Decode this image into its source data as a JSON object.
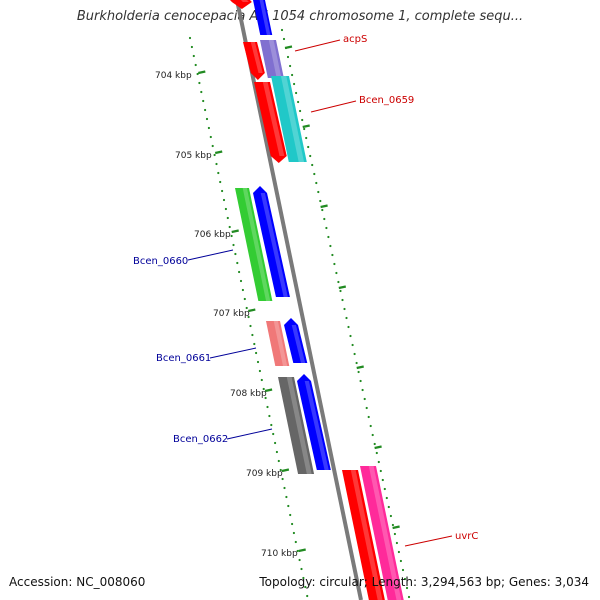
{
  "header": {
    "title": "Burkholderia cenocepacia AU 1054 chromosome 1, complete sequ..."
  },
  "footer": {
    "accession": "Accession: NC_008060",
    "topology": "Topology: circular; Length: 3,294,563 bp; Genes: 3,034"
  },
  "scale_ticks": [
    "704 kbp",
    "705 kbp",
    "706 kbp",
    "707 kbp",
    "708 kbp",
    "709 kbp",
    "710 kbp"
  ],
  "gene_labels": [
    {
      "name": "acpS",
      "color": "#cc0000"
    },
    {
      "name": "Bcen_0659",
      "color": "#cc0000"
    },
    {
      "name": "Bcen_0660",
      "color": "#000099"
    },
    {
      "name": "Bcen_0661",
      "color": "#000099"
    },
    {
      "name": "Bcen_0662",
      "color": "#000099"
    },
    {
      "name": "uvrC",
      "color": "#cc0000"
    }
  ],
  "colors": {
    "backbone": "#808080",
    "forward_strand": "#ff0000",
    "reverse_strand": "#0000ff",
    "scale_dots": "#228b22",
    "gene_purple": "#8070d0",
    "gene_cyan": "#20c8c8",
    "gene_green": "#33cc33",
    "gene_pink": "#f07878",
    "gene_gray": "#666666",
    "gene_magenta": "#ff2a9a"
  }
}
